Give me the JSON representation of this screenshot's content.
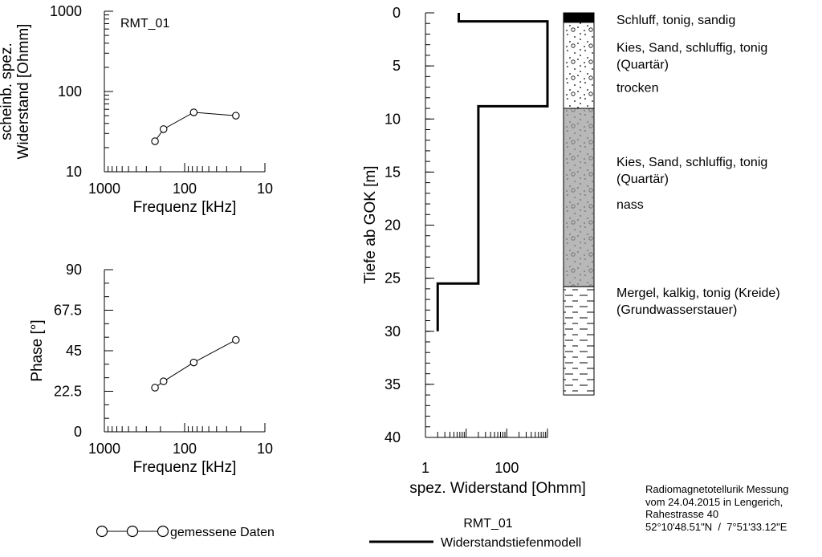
{
  "chart_data": [
    {
      "id": "apparent-resistivity",
      "type": "scatter",
      "annotation": "RMT_01",
      "xlabel": "Frequenz [kHz]",
      "ylabel_lines": [
        "scheinb. spez.",
        "Widerstand [Ohmm]"
      ],
      "x_scale": "log",
      "x_reversed": true,
      "xlim": [
        1000,
        10
      ],
      "x_ticks": [
        "1000",
        "100",
        "10"
      ],
      "y_scale": "log",
      "ylim": [
        10,
        1000
      ],
      "y_ticks": [
        "10",
        "100",
        "1000"
      ],
      "series": [
        {
          "x": [
            234,
            183,
            77,
            23
          ],
          "y": [
            24,
            34,
            55,
            50
          ]
        }
      ]
    },
    {
      "id": "phase",
      "type": "scatter",
      "xlabel": "Frequenz [kHz]",
      "ylabel": "Phase [°]",
      "x_scale": "log",
      "x_reversed": true,
      "xlim": [
        1000,
        10
      ],
      "x_ticks": [
        "1000",
        "100",
        "10"
      ],
      "y_scale": "linear",
      "ylim": [
        0,
        90
      ],
      "y_ticks": [
        "0",
        "22.5",
        "45",
        "67.5",
        "90"
      ],
      "series": [
        {
          "x": [
            234,
            183,
            77,
            23
          ],
          "y": [
            24.5,
            28,
            38.5,
            51
          ]
        }
      ]
    },
    {
      "id": "resistivity-model",
      "type": "line",
      "xlabel": "spez. Widerstand [Ohmm]",
      "ylabel": "Tiefe ab GOK [m]",
      "x_scale": "log",
      "xlim": [
        1,
        1000
      ],
      "x_ticks": [
        "1",
        "100"
      ],
      "y_reversed": true,
      "ylim": [
        0,
        40
      ],
      "y_ticks": [
        "0",
        "5",
        "10",
        "15",
        "20",
        "25",
        "30",
        "35",
        "40"
      ],
      "series": [
        {
          "x": [
            6.6,
            6.6,
            1000,
            1000,
            20,
            20,
            2,
            2
          ],
          "y": [
            0,
            0.8,
            0.8,
            8.8,
            8.8,
            25.5,
            25.5,
            30
          ]
        }
      ]
    }
  ],
  "lithology": {
    "layers": [
      {
        "top": 0,
        "bottom": 0.9,
        "pattern": "black",
        "color": "#000000"
      },
      {
        "top": 0.9,
        "bottom": 9.0,
        "pattern": "gravel-white",
        "color": "#ffffff"
      },
      {
        "top": 9.0,
        "bottom": 25.8,
        "pattern": "gravel-grey",
        "color": "#b8b8b8"
      },
      {
        "top": 25.8,
        "bottom": 36.0,
        "pattern": "marl-dashes",
        "color": "#ffffff"
      }
    ],
    "labels": [
      {
        "depth": 0.6,
        "lines": [
          "Schluff, tonig, sandig"
        ]
      },
      {
        "depth": 3.2,
        "lines": [
          "Kies, Sand, schluffig, tonig",
          "(Quartär)"
        ]
      },
      {
        "depth": 7.0,
        "lines": [
          "trocken"
        ]
      },
      {
        "depth": 14.0,
        "lines": [
          "Kies, Sand, schluffig, tonig",
          "(Quartär)"
        ]
      },
      {
        "depth": 18.0,
        "lines": [
          "nass"
        ]
      },
      {
        "depth": 26.3,
        "lines": [
          "Mergel, kalkig, tonig (Kreide)",
          "(Grundwasserstauer)"
        ]
      }
    ]
  },
  "legend": {
    "measured": "gemessene Daten",
    "model_title": "RMT_01",
    "model": "Widerstandstiefenmodell"
  },
  "info": {
    "lines": [
      "Radiomagnetotellurik Messung",
      "vom 24.04.2015 in Lengerich,",
      "Rahestrasse 40",
      "52°10'48.51\"N  /  7°51'33.12\"E"
    ]
  }
}
